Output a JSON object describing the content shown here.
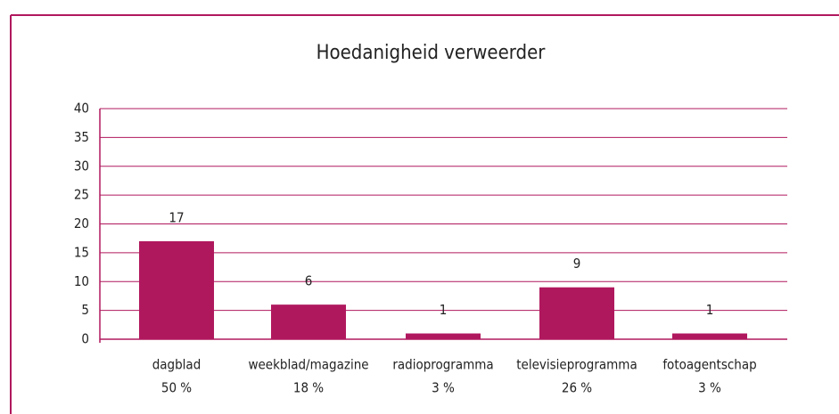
{
  "chart_data": {
    "type": "bar",
    "title": "Hoedanigheid verweerder",
    "categories": [
      "dagblad",
      "weekblad/magazine",
      "radioprogramma",
      "televisieprogramma",
      "fotoagentschap"
    ],
    "values": [
      17,
      6,
      1,
      9,
      1
    ],
    "percent_labels": [
      "50 %",
      "18 %",
      "3 %",
      "26 %",
      "3 %"
    ],
    "color": "#b0185e",
    "ylim": [
      0,
      40
    ],
    "yticks": [
      0,
      5,
      10,
      15,
      20,
      25,
      30,
      35,
      40
    ],
    "grid": true
  }
}
